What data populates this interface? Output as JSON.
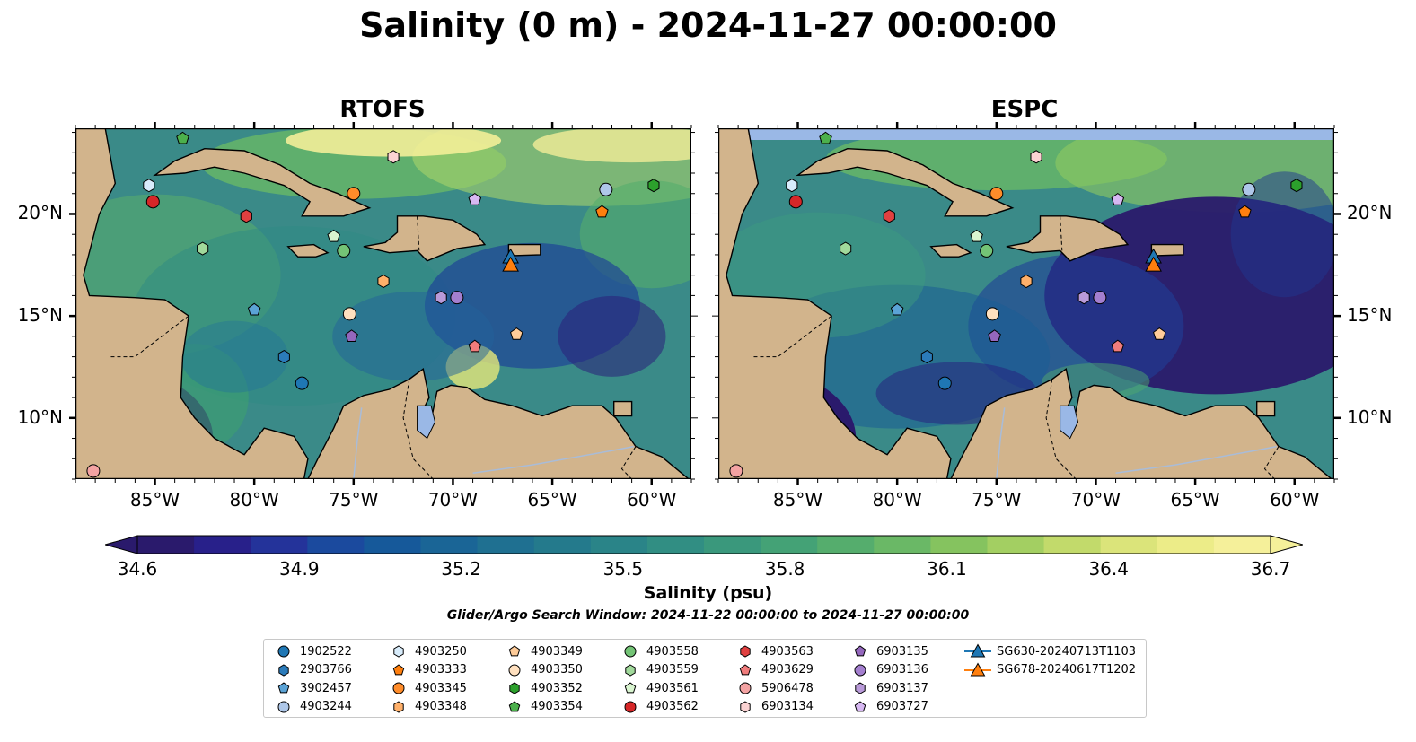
{
  "title": "Salinity (0 m) - 2024-11-27 00:00:00",
  "panels": [
    {
      "title": "RTOFS"
    },
    {
      "title": "ESPC"
    }
  ],
  "map": {
    "lon_range": [
      -89,
      -58
    ],
    "lat_range": [
      7,
      24.2
    ],
    "lon_ticks": [
      {
        "lon": -85,
        "label": "85°W"
      },
      {
        "lon": -80,
        "label": "80°W"
      },
      {
        "lon": -75,
        "label": "75°W"
      },
      {
        "lon": -70,
        "label": "70°W"
      },
      {
        "lon": -65,
        "label": "65°W"
      },
      {
        "lon": -60,
        "label": "60°W"
      }
    ],
    "lat_ticks": [
      {
        "lat": 20,
        "label": "20°N"
      },
      {
        "lat": 15,
        "label": "15°N"
      },
      {
        "lat": 10,
        "label": "10°N"
      }
    ],
    "land_color": "#d2b48c",
    "ocean_base_color": "#3a8a88"
  },
  "colorbar": {
    "label": "Salinity (psu)",
    "min": 34.6,
    "max": 36.7,
    "ticks": [
      "34.6",
      "34.9",
      "35.2",
      "35.5",
      "35.8",
      "36.1",
      "36.4",
      "36.7"
    ],
    "extend": "both",
    "colors": [
      "#2a1a6c",
      "#28208a",
      "#24339a",
      "#1b4a9e",
      "#16599a",
      "#1a6596",
      "#1f7091",
      "#247a8c",
      "#2a8488",
      "#318e83",
      "#3a987c",
      "#44a276",
      "#55ad6d",
      "#6ab866",
      "#85c35f",
      "#a3cf62",
      "#c2da6b",
      "#dbe47a",
      "#ecec88",
      "#f5f09a"
    ]
  },
  "search_window": "Glider/Argo Search Window: 2024-11-22 00:00:00 to 2024-11-27 00:00:00",
  "legend": [
    {
      "label": "1902522",
      "marker": "circle",
      "color": "#1f77b4"
    },
    {
      "label": "2903766",
      "marker": "hexagon",
      "color": "#2b7bba"
    },
    {
      "label": "3902457",
      "marker": "pentagon",
      "color": "#5ba3d6"
    },
    {
      "label": "4903244",
      "marker": "circle",
      "color": "#aec7e8"
    },
    {
      "label": "4903250",
      "marker": "hexagon",
      "color": "#d8ecfb"
    },
    {
      "label": "4903333",
      "marker": "pentagon",
      "color": "#ff7f0e"
    },
    {
      "label": "4903345",
      "marker": "circle",
      "color": "#ff8c2a"
    },
    {
      "label": "4903348",
      "marker": "hexagon",
      "color": "#ffb06a"
    },
    {
      "label": "4903349",
      "marker": "pentagon",
      "color": "#ffcc99"
    },
    {
      "label": "4903350",
      "marker": "circle",
      "color": "#ffe0bf"
    },
    {
      "label": "4903352",
      "marker": "hexagon",
      "color": "#2ca02c"
    },
    {
      "label": "4903354",
      "marker": "pentagon",
      "color": "#4cb04c"
    },
    {
      "label": "4903558",
      "marker": "circle",
      "color": "#74c476"
    },
    {
      "label": "4903559",
      "marker": "hexagon",
      "color": "#a1d99b"
    },
    {
      "label": "4903561",
      "marker": "pentagon",
      "color": "#d9f5d0"
    },
    {
      "label": "4903562",
      "marker": "circle",
      "color": "#d62728"
    },
    {
      "label": "4903563",
      "marker": "hexagon",
      "color": "#e04040"
    },
    {
      "label": "4903629",
      "marker": "pentagon",
      "color": "#f07c7c"
    },
    {
      "label": "5906478",
      "marker": "circle",
      "color": "#f4a3a3"
    },
    {
      "label": "6903134",
      "marker": "hexagon",
      "color": "#fcd3d3"
    },
    {
      "label": "6903135",
      "marker": "pentagon",
      "color": "#9467bd"
    },
    {
      "label": "6903136",
      "marker": "circle",
      "color": "#a47fcf"
    },
    {
      "label": "6903137",
      "marker": "hexagon",
      "color": "#b99ad9"
    },
    {
      "label": "6903727",
      "marker": "pentagon",
      "color": "#d7b8f2"
    },
    {
      "label": "SG630-20240713T1103",
      "marker": "triangle-line",
      "color": "#1f77b4"
    },
    {
      "label": "SG678-20240617T1202",
      "marker": "triangle-line",
      "color": "#ff7f0e"
    }
  ],
  "observations": [
    {
      "id": "1902522",
      "lon": -77.6,
      "lat": 11.7
    },
    {
      "id": "2903766",
      "lon": -78.5,
      "lat": 13.0
    },
    {
      "id": "3902457",
      "lon": -80.0,
      "lat": 15.3
    },
    {
      "id": "4903244",
      "lon": -62.3,
      "lat": 21.2
    },
    {
      "id": "4903250",
      "lon": -85.3,
      "lat": 21.4
    },
    {
      "id": "4903333",
      "lon": -62.5,
      "lat": 20.1
    },
    {
      "id": "4903345",
      "lon": -75.0,
      "lat": 21.0
    },
    {
      "id": "4903348",
      "lon": -73.5,
      "lat": 16.7
    },
    {
      "id": "4903349",
      "lon": -66.8,
      "lat": 14.1
    },
    {
      "id": "4903350",
      "lon": -75.2,
      "lat": 15.1
    },
    {
      "id": "4903352",
      "lon": -59.9,
      "lat": 21.4
    },
    {
      "id": "4903354",
      "lon": -83.6,
      "lat": 23.7
    },
    {
      "id": "4903558",
      "lon": -75.5,
      "lat": 18.2
    },
    {
      "id": "4903559",
      "lon": -82.6,
      "lat": 18.3
    },
    {
      "id": "4903561",
      "lon": -76.0,
      "lat": 18.9
    },
    {
      "id": "4903562",
      "lon": -85.1,
      "lat": 20.6
    },
    {
      "id": "4903563",
      "lon": -80.4,
      "lat": 19.9
    },
    {
      "id": "4903629",
      "lon": -68.9,
      "lat": 13.5
    },
    {
      "id": "5906478",
      "lon": -88.1,
      "lat": 7.4
    },
    {
      "id": "6903134",
      "lon": -73.0,
      "lat": 22.8
    },
    {
      "id": "6903135",
      "lon": -75.1,
      "lat": 14.0
    },
    {
      "id": "6903136",
      "lon": -69.8,
      "lat": 15.9
    },
    {
      "id": "6903137",
      "lon": -70.6,
      "lat": 15.9
    },
    {
      "id": "6903727",
      "lon": -68.9,
      "lat": 20.7
    },
    {
      "id": "SG630-20240713T1103",
      "lon": -67.1,
      "lat": 17.9
    },
    {
      "id": "SG678-20240617T1202",
      "lon": -67.1,
      "lat": 17.5
    }
  ]
}
